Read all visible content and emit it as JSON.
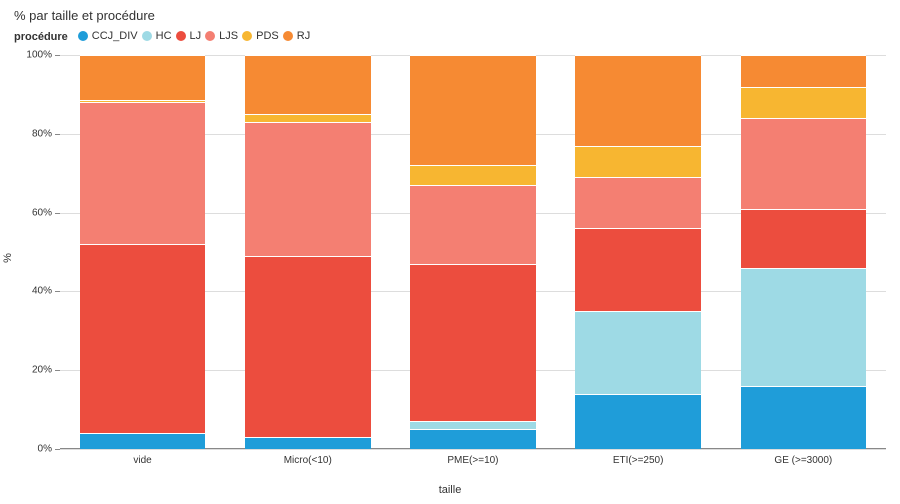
{
  "chart": {
    "type": "stacked-bar",
    "title": "% par taille et procédure",
    "title_fontsize": 13,
    "background_color": "#ffffff",
    "gridline_color": "#dddddd",
    "axis_color": "#888888",
    "text_color": "#333333",
    "tick_fontsize": 10,
    "axis_label_fontsize": 11,
    "legend_title": "procédure",
    "legend": [
      {
        "key": "CCJ_DIV",
        "label": "CCJ_DIV",
        "color": "#1f9dd9"
      },
      {
        "key": "HC",
        "label": "HC",
        "color": "#9edae5"
      },
      {
        "key": "LJ",
        "label": "LJ",
        "color": "#ec4d3e"
      },
      {
        "key": "LJS",
        "label": "LJS",
        "color": "#f47f72"
      },
      {
        "key": "PDS",
        "label": "PDS",
        "color": "#f7b631"
      },
      {
        "key": "RJ",
        "label": "RJ",
        "color": "#f68a33"
      }
    ],
    "ylabel": "%",
    "xlabel": "taille",
    "ylim": [
      0,
      100
    ],
    "y_ticks": [
      0,
      20,
      40,
      60,
      80,
      100
    ],
    "y_tick_suffix": "%",
    "bar_width_pct": 76,
    "segment_border_color": "#ffffff",
    "categories": [
      "vide",
      "Micro(<10)",
      "PME(>=10)",
      "ETI(>=250)",
      "GE (>=3000)"
    ],
    "series": {
      "vide": {
        "CCJ_DIV": 4,
        "HC": 0,
        "LJ": 48,
        "LJS": 36,
        "PDS": 0.5,
        "RJ": 11.5
      },
      "Micro(<10)": {
        "CCJ_DIV": 3,
        "HC": 0,
        "LJ": 46,
        "LJS": 34,
        "PDS": 2,
        "RJ": 15
      },
      "PME(>=10)": {
        "CCJ_DIV": 5,
        "HC": 2,
        "LJ": 40,
        "LJS": 20,
        "PDS": 5,
        "RJ": 28
      },
      "ETI(>=250)": {
        "CCJ_DIV": 14,
        "HC": 21,
        "LJ": 21,
        "LJS": 13,
        "PDS": 8,
        "RJ": 23
      },
      "GE (>=3000)": {
        "CCJ_DIV": 16,
        "HC": 30,
        "LJ": 15,
        "LJS": 23,
        "PDS": 8,
        "RJ": 8
      }
    }
  }
}
